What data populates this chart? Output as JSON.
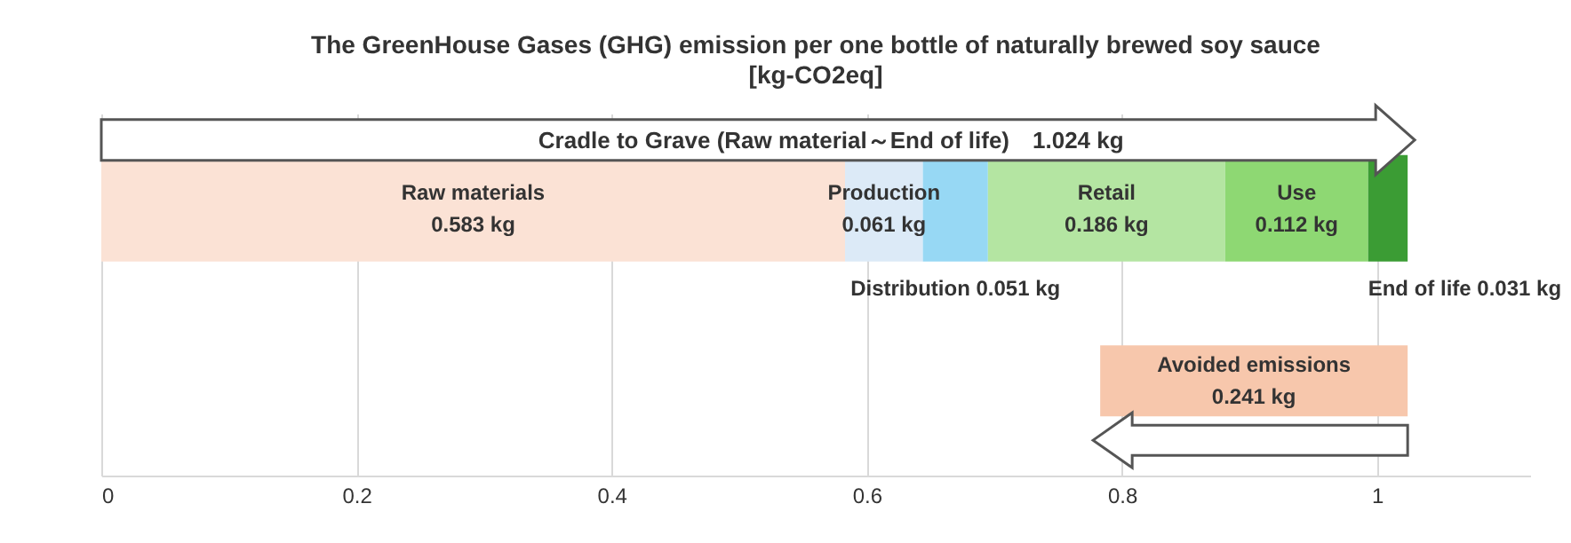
{
  "chart_data": {
    "type": "bar",
    "orientation": "horizontal",
    "stacked": true,
    "title": "The GreenHouse Gases (GHG) emission per one bottle of  naturally brewed soy sauce",
    "subtitle": "[kg-CO2eq]",
    "categories": [
      null,
      null
    ],
    "xlim": [
      0,
      1.12
    ],
    "xticks": [
      0,
      0.2,
      0.4,
      0.6,
      0.8,
      1
    ],
    "grid": "x",
    "legend": false,
    "annotations": [
      "Cradle to Grave (Raw material～End of life)　1.024 kg"
    ],
    "series": [
      {
        "name": "Raw materials",
        "color": "#fbe2d5",
        "values": [
          0.583,
          null
        ],
        "value_labels": [
          "0.583 kg",
          null
        ]
      },
      {
        "name": "Production",
        "color": "#dceaf7",
        "values": [
          0.061,
          null
        ],
        "value_labels": [
          "0.061 kg",
          null
        ]
      },
      {
        "name": "Distribution",
        "color": "#97d8f4",
        "values": [
          0.051,
          null
        ],
        "value_labels": [
          "0.051 kg",
          null
        ]
      },
      {
        "name": "Retail",
        "color": "#b4e5a2",
        "values": [
          0.186,
          null
        ],
        "value_labels": [
          "0.186 kg",
          null
        ]
      },
      {
        "name": "Use",
        "color": "#8ed873",
        "values": [
          0.112,
          null
        ],
        "value_labels": [
          "0.112 kg",
          null
        ]
      },
      {
        "name": "End of life",
        "color": "#3b9c34",
        "values": [
          0.031,
          null
        ],
        "value_labels": [
          "0.031 kg",
          null
        ]
      },
      {
        "name": "Avoided emissions",
        "color": "#f7c7ac",
        "values": [
          null,
          0.241
        ],
        "base": [
          null,
          0.783
        ],
        "value_labels": [
          null,
          "0.241 kg"
        ]
      }
    ]
  }
}
